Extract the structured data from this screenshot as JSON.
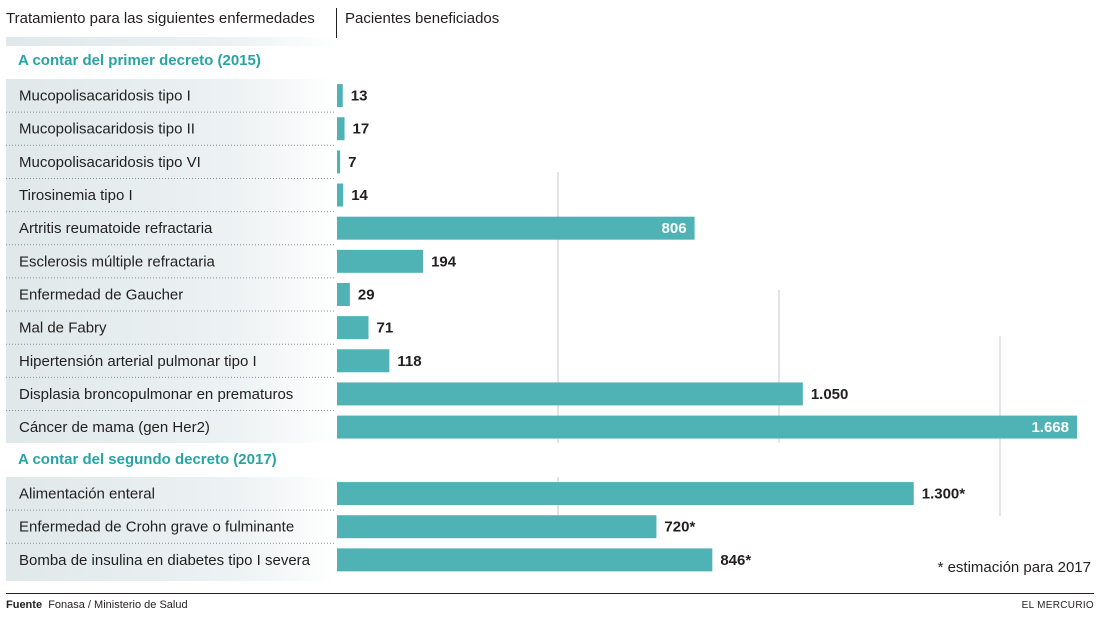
{
  "header": {
    "left": "Tratamiento para las siguientes enfermedades",
    "right": "Pacientes beneficiados"
  },
  "sections": [
    {
      "title": "A contar del primer decreto (2015)"
    },
    {
      "title": "A contar del segundo decreto (2017)"
    }
  ],
  "chart_data": {
    "type": "bar",
    "orientation": "horizontal",
    "xlim": [
      0,
      1668
    ],
    "grid": "vertical lines",
    "bar_color": "#4fb3b5",
    "groups": [
      {
        "title": "A contar del primer decreto (2015)",
        "items": [
          {
            "label": "Mucopolisacaridosis tipo I",
            "value": 13,
            "display": "13"
          },
          {
            "label": "Mucopolisacaridosis tipo II",
            "value": 17,
            "display": "17"
          },
          {
            "label": "Mucopolisacaridosis tipo VI",
            "value": 7,
            "display": "7"
          },
          {
            "label": "Tirosinemia tipo I",
            "value": 14,
            "display": "14"
          },
          {
            "label": "Artritis reumatoide refractaria",
            "value": 806,
            "display": "806"
          },
          {
            "label": "Esclerosis múltiple refractaria",
            "value": 194,
            "display": "194"
          },
          {
            "label": "Enfermedad de Gaucher",
            "value": 29,
            "display": "29"
          },
          {
            "label": "Mal de Fabry",
            "value": 71,
            "display": "71"
          },
          {
            "label": "Hipertensión arterial pulmonar tipo I",
            "value": 118,
            "display": "118"
          },
          {
            "label": "Displasia broncopulmonar en prematuros",
            "value": 1050,
            "display": "1.050"
          },
          {
            "label": "Cáncer de mama (gen Her2)",
            "value": 1668,
            "display": "1.668"
          }
        ]
      },
      {
        "title": "A contar del segundo decreto (2017)",
        "items": [
          {
            "label": "Alimentación enteral",
            "value": 1300,
            "display": "1.300*"
          },
          {
            "label": "Enfermedad de Crohn grave o fulminante",
            "value": 720,
            "display": "720*"
          },
          {
            "label": "Bomba de insulina en diabetes tipo I severa",
            "value": 846,
            "display": "846*"
          }
        ]
      }
    ]
  },
  "note": "* estimación para 2017",
  "footer": {
    "source_label": "Fuente",
    "source_text": "Fonasa / Ministerio de Salud",
    "brand": "EL MERCURIO"
  }
}
